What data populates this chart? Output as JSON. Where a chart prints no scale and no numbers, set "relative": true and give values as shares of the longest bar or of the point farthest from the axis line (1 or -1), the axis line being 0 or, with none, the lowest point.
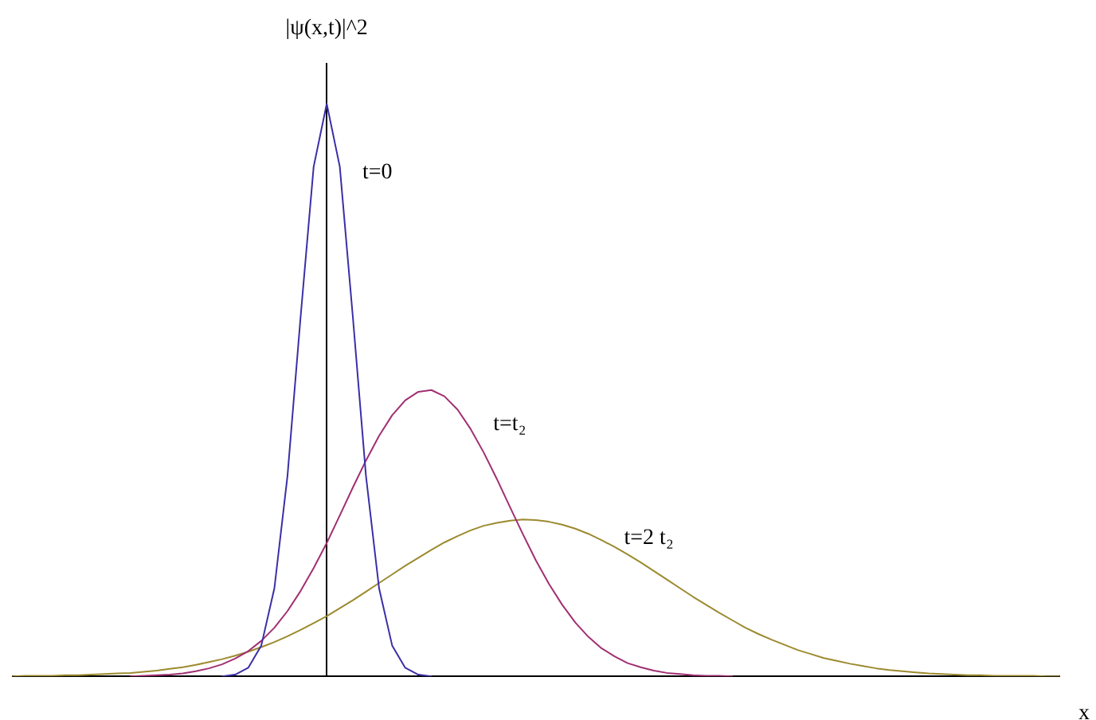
{
  "chart_data": {
    "type": "line",
    "relative": true,
    "ylabel": "|ψ(x,t)|^2",
    "xlabel": "x",
    "marker": "none",
    "line_style": "solid",
    "categories": [
      null,
      null,
      null,
      null,
      null,
      null,
      null,
      null,
      null,
      null,
      null,
      null,
      null,
      null,
      null,
      null,
      null,
      null,
      null,
      null,
      null,
      null,
      null,
      null,
      null,
      null,
      null,
      null,
      null,
      null,
      null,
      null,
      null,
      null,
      null,
      null,
      null,
      null,
      null,
      null,
      null,
      null,
      null,
      null,
      null,
      null,
      null,
      null,
      null,
      null,
      null,
      null,
      null,
      null,
      null,
      null,
      null,
      null,
      null,
      null,
      null,
      null,
      null,
      null,
      null,
      null,
      null,
      null,
      null,
      null,
      null,
      null,
      null,
      null,
      null,
      null,
      null,
      null,
      null,
      null,
      null
    ],
    "series": [
      {
        "name": "t=0",
        "color": "#3b2fa6",
        "values": [
          null,
          null,
          null,
          null,
          null,
          null,
          null,
          null,
          null,
          null,
          null,
          null,
          null,
          null,
          null,
          null,
          0,
          0.003,
          0.015,
          0.054,
          0.154,
          0.35,
          0.627,
          0.89,
          1,
          0.89,
          0.627,
          0.35,
          0.154,
          0.054,
          0.015,
          0.003,
          0,
          null,
          null,
          null,
          null,
          null,
          null,
          null,
          null,
          null,
          null,
          null,
          null,
          null,
          null,
          null,
          null,
          null,
          null,
          null,
          null,
          null,
          null,
          null,
          null,
          null,
          null,
          null,
          null,
          null,
          null,
          null,
          null,
          null,
          null,
          null,
          null,
          null,
          null,
          null,
          null,
          null,
          null,
          null,
          null,
          null,
          null,
          null,
          null
        ]
      },
      {
        "name": "t=t₂",
        "color": "#a12f72",
        "values": [
          null,
          null,
          null,
          null,
          null,
          null,
          null,
          null,
          null,
          0,
          0.001,
          0.002,
          0.003,
          0.005,
          0.009,
          0.014,
          0.021,
          0.031,
          0.044,
          0.062,
          0.085,
          0.114,
          0.149,
          0.189,
          0.233,
          0.281,
          0.33,
          0.377,
          0.42,
          0.456,
          0.482,
          0.497,
          0.5,
          0.489,
          0.466,
          0.432,
          0.391,
          0.345,
          0.296,
          0.248,
          0.202,
          0.161,
          0.125,
          0.094,
          0.069,
          0.049,
          0.035,
          0.023,
          0.016,
          0.01,
          0.006,
          0.004,
          0.002,
          0.001,
          0.001,
          0,
          null,
          null,
          null,
          null,
          null,
          null,
          null,
          null,
          null,
          null,
          null,
          null,
          null,
          null,
          null,
          null,
          null,
          null,
          null,
          null,
          null,
          null,
          null,
          null,
          null
        ]
      },
      {
        "name": "t=2 t₂",
        "color": "#9c8a2e",
        "values": [
          0,
          0.001,
          0.001,
          0.001,
          0.002,
          0.002,
          0.003,
          0.004,
          0.005,
          0.006,
          0.008,
          0.01,
          0.013,
          0.016,
          0.02,
          0.025,
          0.03,
          0.036,
          0.043,
          0.051,
          0.06,
          0.07,
          0.081,
          0.093,
          0.105,
          0.119,
          0.133,
          0.148,
          0.163,
          0.178,
          0.193,
          0.207,
          0.221,
          0.234,
          0.245,
          0.255,
          0.263,
          0.268,
          0.272,
          0.274,
          0.273,
          0.27,
          0.265,
          0.258,
          0.249,
          0.238,
          0.226,
          0.213,
          0.199,
          0.184,
          0.169,
          0.154,
          0.139,
          0.125,
          0.111,
          0.098,
          0.085,
          0.074,
          0.064,
          0.055,
          0.046,
          0.039,
          0.032,
          0.027,
          0.022,
          0.018,
          0.014,
          0.011,
          0.009,
          0.007,
          0.005,
          0.004,
          0.003,
          0.002,
          0.002,
          0.001,
          0.001,
          0.001,
          0.001,
          0,
          0
        ]
      }
    ]
  }
}
